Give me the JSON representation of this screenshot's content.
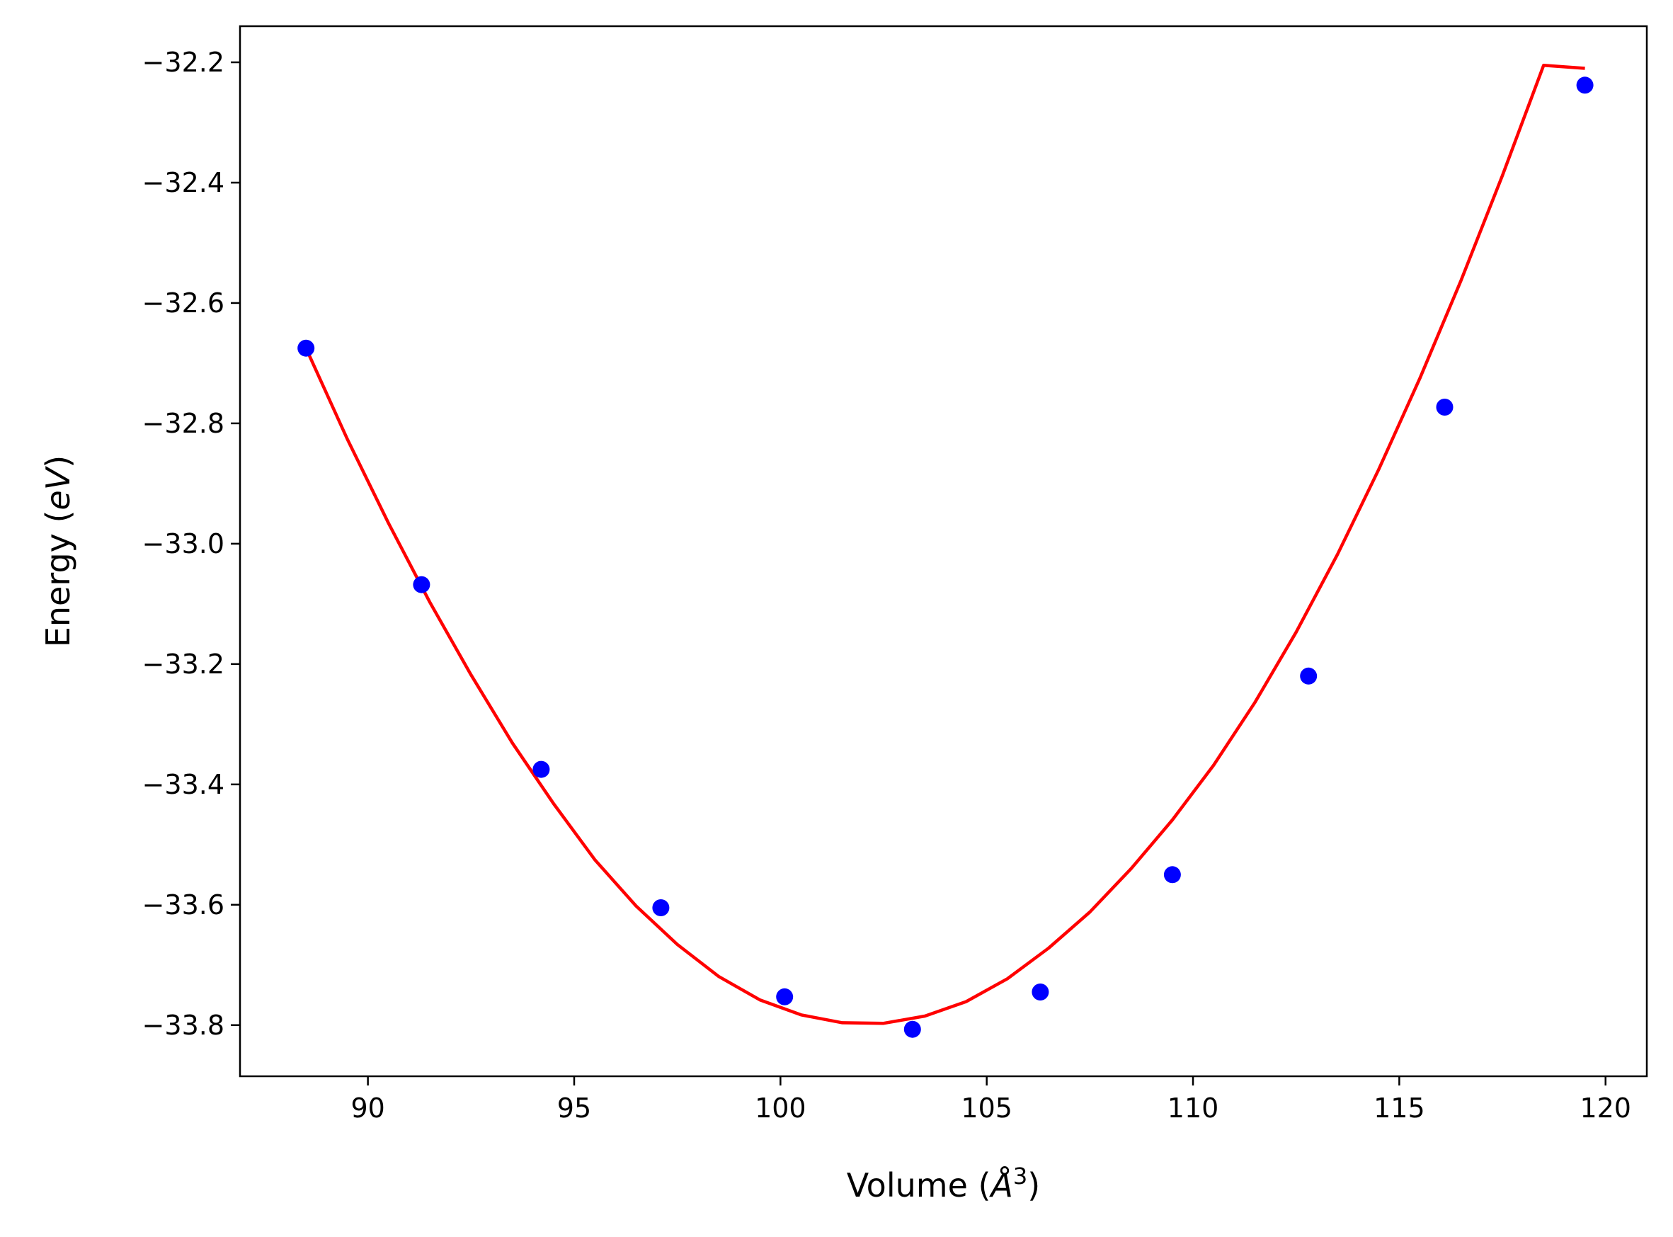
{
  "chart_data": {
    "type": "scatter",
    "title": "",
    "xlabel": {
      "prefix": "Volume (",
      "symbol": "Å",
      "superscript": "3",
      "suffix": ")"
    },
    "ylabel": {
      "prefix": "Energy (",
      "symbol": "eV",
      "suffix": ")"
    },
    "xlim": [
      86.9,
      121.0
    ],
    "ylim": [
      -33.885,
      -32.14
    ],
    "xticks": [
      90,
      95,
      100,
      105,
      110,
      115,
      120
    ],
    "xtick_labels": [
      "90",
      "95",
      "100",
      "105",
      "110",
      "115",
      "120"
    ],
    "yticks": [
      -33.8,
      -33.6,
      -33.4,
      -33.2,
      -33.0,
      -32.8,
      -32.6,
      -32.4,
      -32.2
    ],
    "ytick_labels": [
      "−33.8",
      "−33.6",
      "−33.4",
      "−33.2",
      "−33.0",
      "−32.8",
      "−32.6",
      "−32.4",
      "−32.2"
    ],
    "grid": false,
    "legend": "none",
    "series": [
      {
        "kind": "points",
        "color": "#0000ff",
        "x": [
          88.5,
          91.3,
          94.2,
          97.1,
          100.1,
          103.2,
          106.3,
          109.5,
          112.8,
          116.1,
          119.5
        ],
        "y": [
          -32.675,
          -33.068,
          -33.375,
          -33.605,
          -33.753,
          -33.807,
          -33.745,
          -33.55,
          -33.22,
          -32.773,
          -32.238
        ]
      },
      {
        "kind": "fit_curve",
        "color": "#ff0000",
        "x": [
          88.5,
          89.5,
          90.5,
          91.5,
          92.5,
          93.5,
          94.5,
          95.5,
          96.5,
          97.5,
          98.5,
          99.5,
          100.5,
          101.5,
          102.5,
          103.5,
          104.5,
          105.5,
          106.5,
          107.5,
          108.5,
          109.5,
          110.5,
          111.5,
          112.5,
          113.5,
          114.5,
          115.5,
          116.5,
          117.5,
          118.5,
          119.5
        ],
        "y": [
          -32.675,
          -32.826,
          -32.966,
          -33.097,
          -33.218,
          -33.331,
          -33.432,
          -33.525,
          -33.602,
          -33.666,
          -33.719,
          -33.758,
          -33.783,
          -33.796,
          -33.797,
          -33.785,
          -33.761,
          -33.723,
          -33.672,
          -33.612,
          -33.54,
          -33.459,
          -33.368,
          -33.264,
          -33.147,
          -33.018,
          -32.877,
          -32.725,
          -32.562,
          -32.388,
          -32.205,
          -32.21
        ]
      }
    ]
  }
}
